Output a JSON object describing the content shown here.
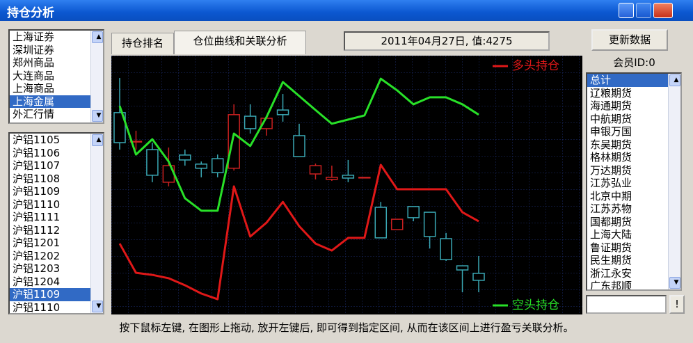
{
  "window": {
    "title": "持仓分析"
  },
  "markets": {
    "items": [
      "上海证券",
      "深圳证券",
      "郑州商品",
      "大连商品",
      "上海商品",
      "上海金属",
      "外汇行情"
    ],
    "selected": 5
  },
  "contracts": {
    "items": [
      "沪铝1105",
      "沪铝1106",
      "沪铝1107",
      "沪铝1108",
      "沪铝1109",
      "沪铝1110",
      "沪铝1111",
      "沪铝1112",
      "沪铝1201",
      "沪铝1202",
      "沪铝1203",
      "沪铝1204",
      "沪铝1109",
      "沪铝1110"
    ],
    "selected": 12
  },
  "tabs": [
    "持仓排名",
    "仓位曲线和关联分析"
  ],
  "active_tab": 1,
  "status": "2011年04月27日, 值:4275",
  "refresh_button": "更新数据",
  "member_label": "会员ID:0",
  "members": {
    "items": [
      "总计",
      "辽粮期货",
      "海通期货",
      "中航期货",
      "申银万国",
      "东吴期货",
      "格林期货",
      "万达期货",
      "江苏弘业",
      "北京中期",
      "江苏苏物",
      "国都期货",
      "上海大陆",
      "鲁证期货",
      "民生期货",
      "浙江永安",
      "广东邦顺"
    ],
    "selected": 0
  },
  "go_button": "!",
  "hint": "按下鼠标左键, 在图形上拖动, 放开左键后, 即可得到指定区间, 从而在该区间上进行盈亏关联分析。",
  "chart_data": {
    "type": "line",
    "ylim": [
      0,
      100
    ],
    "grid": true,
    "series": [
      {
        "name": "多头持仓",
        "color": "#e01818",
        "values": [
          27.4,
          16.1,
          15.3,
          14.0,
          11.3,
          8.1,
          5.9,
          49.5,
          30.1,
          35.5,
          43.5,
          34.1,
          27.4,
          24.7,
          29.6,
          29.6,
          57.8,
          48.4,
          48.4,
          48.4,
          48.4,
          39.5,
          36.0
        ]
      },
      {
        "name": "空头持仓",
        "color": "#28e028",
        "values": [
          80.6,
          61.8,
          67.7,
          59.1,
          44.9,
          40.1,
          40.1,
          69.9,
          65.1,
          76.3,
          89.8,
          84.4,
          79.0,
          73.7,
          75.3,
          76.9,
          91.1,
          86.6,
          81.2,
          83.9,
          83.9,
          81.2,
          77.2
        ]
      }
    ],
    "candles": {
      "up_color": "#c82020",
      "down_color": "#3aa8b4",
      "open": [
        78.0,
        66.9,
        63.7,
        51.1,
        61.6,
        58.1,
        60.2,
        56.5,
        76.6,
        71.8,
        79.0,
        69.1,
        54.3,
        52.2,
        53.8,
        53.0,
        41.4,
        32.8,
        41.7,
        39.5,
        29.3,
        18.8,
        15.9
      ],
      "close": [
        66.4,
        66.9,
        53.8,
        57.5,
        59.7,
        56.5,
        54.8,
        77.2,
        71.8,
        75.8,
        77.2,
        61.0,
        57.5,
        53.0,
        52.7,
        53.0,
        29.6,
        36.8,
        37.4,
        30.1,
        21.2,
        17.2,
        13.2
      ],
      "high": [
        91.4,
        71.0,
        66.4,
        64.5,
        63.7,
        59.1,
        61.8,
        81.2,
        81.2,
        76.3,
        85.2,
        73.7,
        58.3,
        57.5,
        59.7,
        53.0,
        43.5,
        36.8,
        41.7,
        39.5,
        31.5,
        18.8,
        22.6
      ],
      "low": [
        63.7,
        63.7,
        51.1,
        49.5,
        57.5,
        53.0,
        53.0,
        55.6,
        69.9,
        69.1,
        74.5,
        61.0,
        52.2,
        51.6,
        51.1,
        53.0,
        29.6,
        32.8,
        36.0,
        25.5,
        20.7,
        8.6,
        8.6
      ]
    }
  }
}
